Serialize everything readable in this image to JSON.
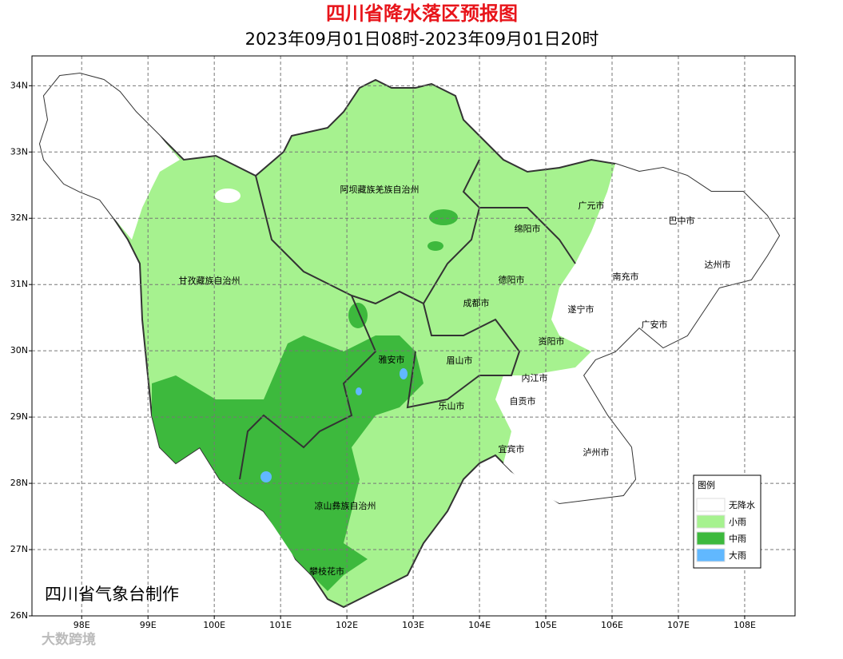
{
  "header": {
    "title": "四川省降水落区预报图",
    "subtitle": "2023年09月01日08时-2023年09月01日20时"
  },
  "map": {
    "xlim": [
      97.25,
      108.76
    ],
    "ylim": [
      26,
      34.45
    ],
    "xticks": [
      {
        "value": 98,
        "label": "98E"
      },
      {
        "value": 99,
        "label": "99E"
      },
      {
        "value": 100,
        "label": "100E"
      },
      {
        "value": 101,
        "label": "101E"
      },
      {
        "value": 102,
        "label": "102E"
      },
      {
        "value": 103,
        "label": "103E"
      },
      {
        "value": 104,
        "label": "104E"
      },
      {
        "value": 105,
        "label": "105E"
      },
      {
        "value": 106,
        "label": "106E"
      },
      {
        "value": 107,
        "label": "107E"
      },
      {
        "value": 108,
        "label": "108E"
      }
    ],
    "yticks": [
      {
        "value": 26,
        "label": "26N"
      },
      {
        "value": 27,
        "label": "27N"
      },
      {
        "value": 28,
        "label": "28N"
      },
      {
        "value": 29,
        "label": "29N"
      },
      {
        "value": 30,
        "label": "30N"
      },
      {
        "value": 31,
        "label": "31N"
      },
      {
        "value": 32,
        "label": "32N"
      },
      {
        "value": 33,
        "label": "33N"
      },
      {
        "value": 34,
        "label": "34N"
      }
    ],
    "grid": true,
    "regions": [
      "阿坝藏族羌族自治州",
      "甘孜藏族自治州",
      "广元市",
      "巴中市",
      "绵阳市",
      "达州市",
      "南充市",
      "德阳市",
      "遂宁市",
      "成都市",
      "广安市",
      "资阳市",
      "雅安市",
      "眉山市",
      "内江市",
      "自贡市",
      "乐山市",
      "宜宾市",
      "泸州市",
      "凉山彝族自治州",
      "攀枝花市"
    ]
  },
  "legend": {
    "title": "图例",
    "items": [
      {
        "label": "无降水",
        "color": "#ffffff"
      },
      {
        "label": "小雨",
        "color": "#a6f28f"
      },
      {
        "label": "中雨",
        "color": "#3db93d"
      },
      {
        "label": "大雨",
        "color": "#61b8ff"
      }
    ]
  },
  "credit": "四川省气象台制作",
  "watermark": "大数跨境"
}
